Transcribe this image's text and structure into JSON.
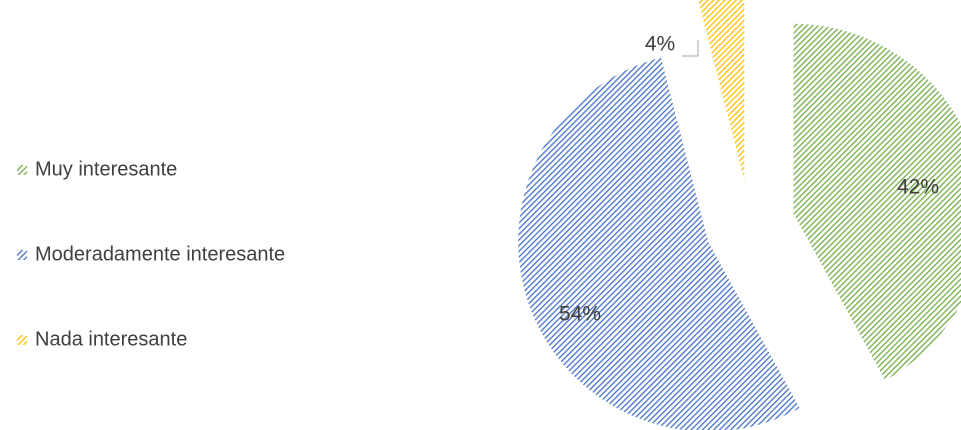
{
  "chart_data": {
    "type": "pie",
    "categories": [
      "Muy interesante",
      "Moderadamente interesante",
      "Nada interesante"
    ],
    "values": [
      42,
      54,
      4
    ],
    "value_labels": [
      "42%",
      "54%",
      "4%"
    ],
    "colors": [
      "#70ad47",
      "#4472c4",
      "#ffc000"
    ]
  }
}
